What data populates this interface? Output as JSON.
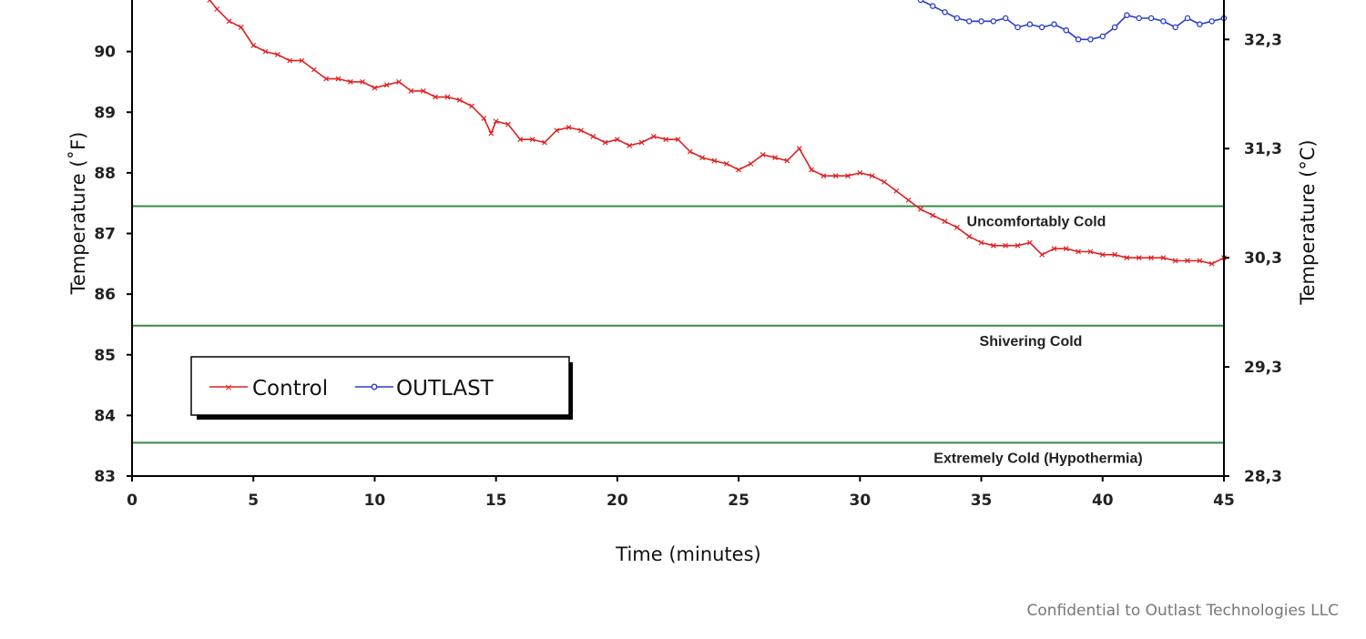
{
  "chart_data": {
    "type": "line",
    "xlabel": "Time (minutes)",
    "ylabel": "Temperature (˚F)",
    "y2label": "Temperature (°C)",
    "xlim": [
      0,
      45
    ],
    "ylim": [
      83,
      90.85
    ],
    "x_ticks": [
      0,
      5,
      10,
      15,
      20,
      25,
      30,
      35,
      40,
      45
    ],
    "y_ticks": [
      83,
      84,
      85,
      86,
      87,
      88,
      89,
      90
    ],
    "y2_ticks": [
      {
        "label": "28,3",
        "f": 83
      },
      {
        "label": "29,3",
        "f": 84.8
      },
      {
        "label": "30,3",
        "f": 86.6
      },
      {
        "label": "31,3",
        "f": 88.4
      },
      {
        "label": "32,3",
        "f": 90.2
      }
    ],
    "grid": false,
    "legend_position": "lower-left",
    "thresholds": [
      {
        "label": "Uncomfortably Cold",
        "value": 87.45,
        "color": "#3a8a45"
      },
      {
        "label": "Shivering Cold",
        "value": 85.48,
        "color": "#3a8a45"
      },
      {
        "label": "Extremely Cold (Hypothermia)",
        "value": 83.55,
        "color": "#3a8a45"
      }
    ],
    "series": [
      {
        "name": "Control",
        "color": "#e02020",
        "marker": "x",
        "points": [
          [
            3.2,
            90.85
          ],
          [
            3.5,
            90.7
          ],
          [
            4,
            90.5
          ],
          [
            4.5,
            90.4
          ],
          [
            5,
            90.1
          ],
          [
            5.5,
            90
          ],
          [
            6,
            89.95
          ],
          [
            6.5,
            89.85
          ],
          [
            7,
            89.85
          ],
          [
            7.5,
            89.7
          ],
          [
            8,
            89.55
          ],
          [
            8.5,
            89.55
          ],
          [
            9,
            89.5
          ],
          [
            9.5,
            89.5
          ],
          [
            10,
            89.4
          ],
          [
            10.5,
            89.45
          ],
          [
            11,
            89.5
          ],
          [
            11.5,
            89.35
          ],
          [
            12,
            89.35
          ],
          [
            12.5,
            89.25
          ],
          [
            13,
            89.25
          ],
          [
            13.5,
            89.2
          ],
          [
            14,
            89.1
          ],
          [
            14.5,
            88.9
          ],
          [
            14.8,
            88.65
          ],
          [
            15,
            88.85
          ],
          [
            15.5,
            88.8
          ],
          [
            16,
            88.55
          ],
          [
            16.5,
            88.55
          ],
          [
            17,
            88.5
          ],
          [
            17.5,
            88.7
          ],
          [
            18,
            88.75
          ],
          [
            18.5,
            88.7
          ],
          [
            19,
            88.6
          ],
          [
            19.5,
            88.5
          ],
          [
            20,
            88.55
          ],
          [
            20.5,
            88.45
          ],
          [
            21,
            88.5
          ],
          [
            21.5,
            88.6
          ],
          [
            22,
            88.55
          ],
          [
            22.5,
            88.55
          ],
          [
            23,
            88.35
          ],
          [
            23.5,
            88.25
          ],
          [
            24,
            88.2
          ],
          [
            24.5,
            88.15
          ],
          [
            25,
            88.05
          ],
          [
            25.5,
            88.15
          ],
          [
            26,
            88.3
          ],
          [
            26.5,
            88.25
          ],
          [
            27,
            88.2
          ],
          [
            27.5,
            88.4
          ],
          [
            28,
            88.05
          ],
          [
            28.5,
            87.95
          ],
          [
            29,
            87.95
          ],
          [
            29.5,
            87.95
          ],
          [
            30,
            88
          ],
          [
            30.5,
            87.95
          ],
          [
            31,
            87.85
          ],
          [
            31.5,
            87.7
          ],
          [
            32,
            87.55
          ],
          [
            32.5,
            87.4
          ],
          [
            33,
            87.3
          ],
          [
            33.5,
            87.2
          ],
          [
            34,
            87.1
          ],
          [
            34.5,
            86.95
          ],
          [
            35,
            86.85
          ],
          [
            35.5,
            86.8
          ],
          [
            36,
            86.8
          ],
          [
            36.5,
            86.8
          ],
          [
            37,
            86.85
          ],
          [
            37.5,
            86.65
          ],
          [
            38,
            86.75
          ],
          [
            38.5,
            86.75
          ],
          [
            39,
            86.7
          ],
          [
            39.5,
            86.7
          ],
          [
            40,
            86.65
          ],
          [
            40.5,
            86.65
          ],
          [
            41,
            86.6
          ],
          [
            41.5,
            86.6
          ],
          [
            42,
            86.6
          ],
          [
            42.5,
            86.6
          ],
          [
            43,
            86.55
          ],
          [
            43.5,
            86.55
          ],
          [
            44,
            86.55
          ],
          [
            44.5,
            86.5
          ],
          [
            45,
            86.6
          ]
        ]
      },
      {
        "name": "OUTLAST",
        "color": "#2a3bd0",
        "marker": "circle",
        "points": [
          [
            32.5,
            90.85
          ],
          [
            33,
            90.75
          ],
          [
            33.5,
            90.65
          ],
          [
            34,
            90.55
          ],
          [
            34.5,
            90.5
          ],
          [
            35,
            90.5
          ],
          [
            35.5,
            90.5
          ],
          [
            36,
            90.55
          ],
          [
            36.5,
            90.4
          ],
          [
            37,
            90.45
          ],
          [
            37.5,
            90.4
          ],
          [
            38,
            90.45
          ],
          [
            38.5,
            90.35
          ],
          [
            39,
            90.2
          ],
          [
            39.5,
            90.2
          ],
          [
            40,
            90.25
          ],
          [
            40.5,
            90.4
          ],
          [
            41,
            90.6
          ],
          [
            41.5,
            90.55
          ],
          [
            42,
            90.55
          ],
          [
            42.5,
            90.5
          ],
          [
            43,
            90.4
          ],
          [
            43.5,
            90.55
          ],
          [
            44,
            90.45
          ],
          [
            44.5,
            90.5
          ],
          [
            45,
            90.55
          ]
        ]
      }
    ]
  },
  "footer": {
    "text": "Confidential to Outlast Technologies LLC"
  }
}
